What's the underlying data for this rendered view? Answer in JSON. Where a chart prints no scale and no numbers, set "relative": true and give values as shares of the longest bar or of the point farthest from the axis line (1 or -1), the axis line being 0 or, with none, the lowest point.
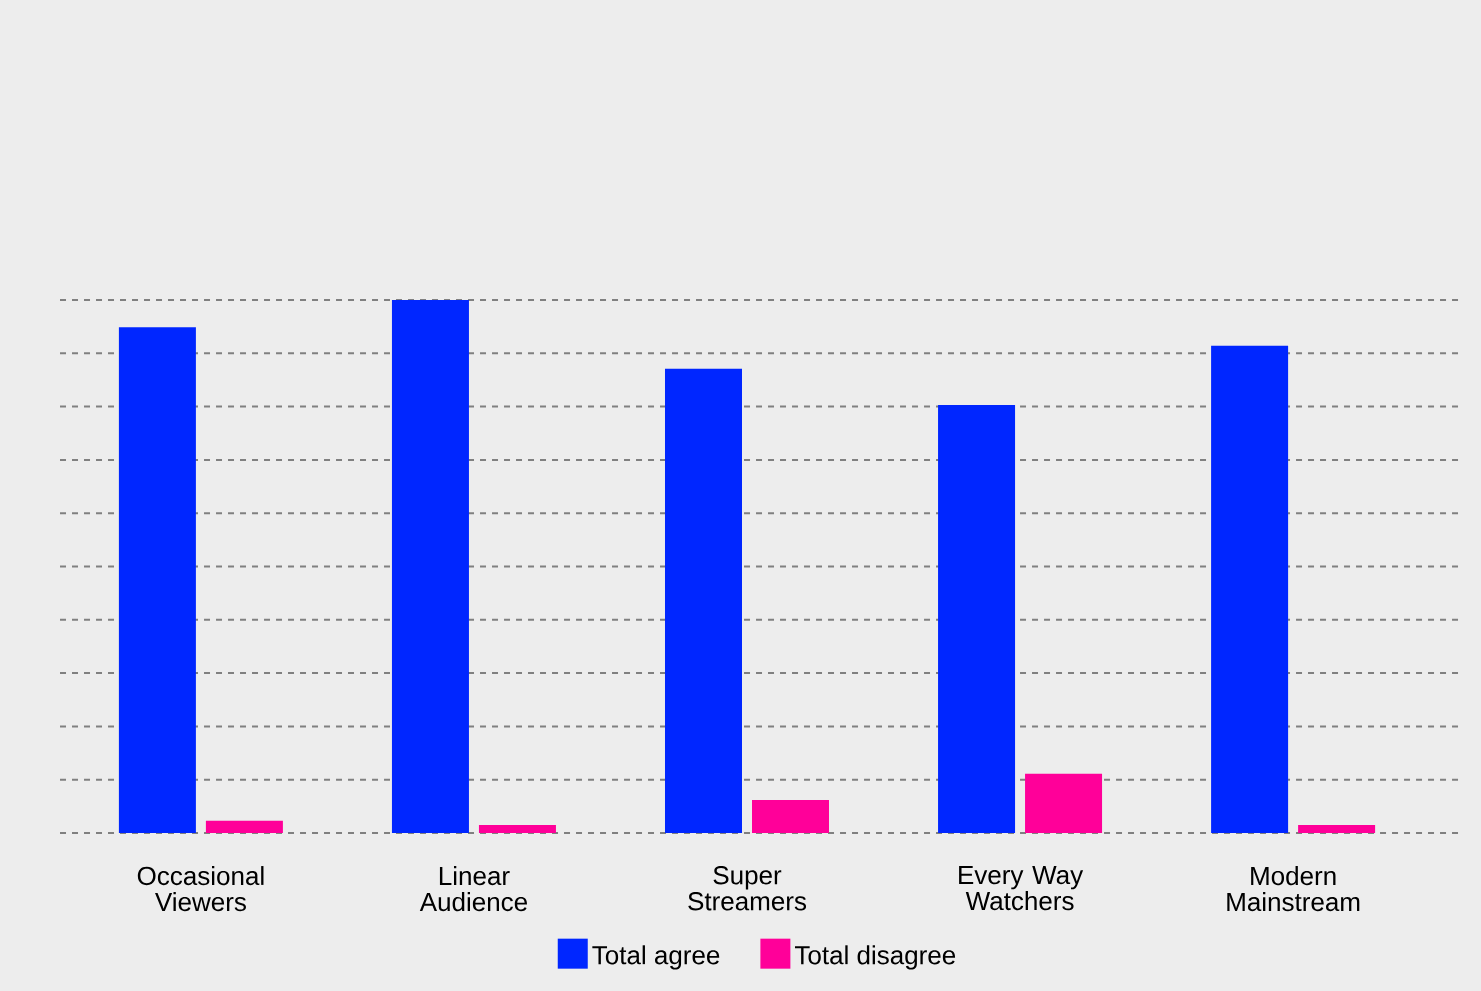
{
  "chart_data": {
    "type": "bar",
    "relative": true,
    "grid": "y",
    "legend": "bottom",
    "categories": [
      "Occasional Viewers",
      "Linear Audience",
      "Super Streamers",
      "Every Way Watchers",
      "Modern Mainstream"
    ],
    "series": [
      {
        "name": "Total agree",
        "color": "#0026ff",
        "values": [
          0.949,
          1,
          0.871,
          0.803,
          0.914
        ]
      },
      {
        "name": "Total disagree",
        "color": "#ff0099",
        "values": [
          0.023,
          0.015,
          0.062,
          0.111,
          0.015
        ]
      }
    ]
  }
}
